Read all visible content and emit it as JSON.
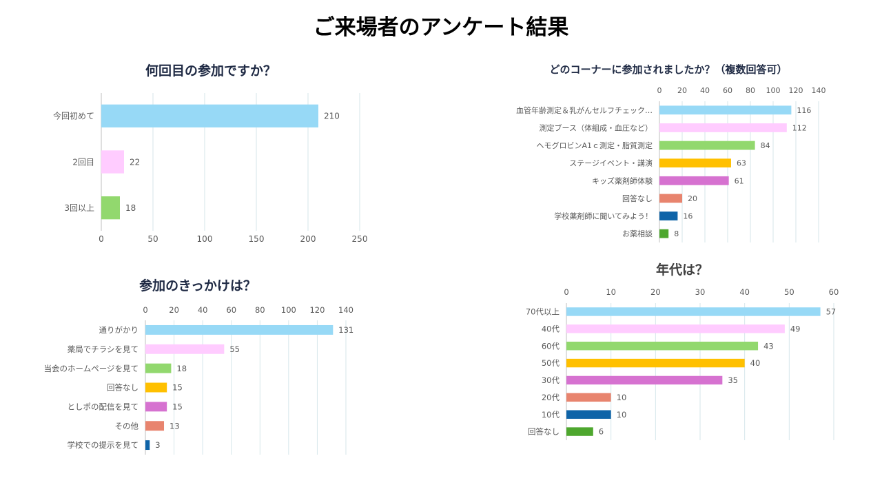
{
  "page": {
    "title": "ご来場者のアンケート結果"
  },
  "chart_data": [
    {
      "type": "bar",
      "orientation": "horizontal",
      "title": "何回目の参加ですか？",
      "categories": [
        "今回初めて",
        "2回目",
        "3回以上"
      ],
      "values": [
        210,
        22,
        18
      ],
      "colors": [
        "#97d9f6",
        "#ffccff",
        "#92d86e"
      ],
      "xlim": [
        0,
        250
      ],
      "xticks": [
        0,
        50,
        100,
        150,
        200,
        250
      ],
      "axis_position": "bottom",
      "grid": true
    },
    {
      "type": "bar",
      "orientation": "horizontal",
      "title": "どのコーナーに参加されましたか？（複数回答可）",
      "categories": [
        "血管年齢測定＆乳がんセルフチェック…",
        "測定ブース（体組成・血圧など）",
        "ヘモグロビンA1ｃ測定・脂質測定",
        "ステージイベント・講演",
        "キッズ薬剤師体験",
        "回答なし",
        "学校薬剤師に聞いてみよう！",
        "お薬相談"
      ],
      "values": [
        116,
        112,
        84,
        63,
        61,
        20,
        16,
        8
      ],
      "colors": [
        "#97d9f6",
        "#ffccff",
        "#92d86e",
        "#ffc000",
        "#d672d0",
        "#e8846e",
        "#0f64a8",
        "#4ea72e"
      ],
      "xlim": [
        0,
        140
      ],
      "xticks": [
        0,
        20,
        40,
        60,
        80,
        100,
        120,
        140
      ],
      "axis_position": "top",
      "grid": true
    },
    {
      "type": "bar",
      "orientation": "horizontal",
      "title": "参加のきっかけは？",
      "categories": [
        "通りがかり",
        "薬局でチラシを見て",
        "当会のホームページを見て",
        "回答なし",
        "としポの配信を見て",
        "その他",
        "学校での提示を見て"
      ],
      "values": [
        131,
        55,
        18,
        15,
        15,
        13,
        3
      ],
      "colors": [
        "#97d9f6",
        "#ffccff",
        "#92d86e",
        "#ffc000",
        "#d672d0",
        "#e8846e",
        "#0f64a8"
      ],
      "xlim": [
        0,
        140
      ],
      "xticks": [
        0,
        20,
        40,
        60,
        80,
        100,
        120,
        140
      ],
      "axis_position": "top",
      "grid": true
    },
    {
      "type": "bar",
      "orientation": "horizontal",
      "title": "年代は？",
      "categories": [
        "70代以上",
        "40代",
        "60代",
        "50代",
        "30代",
        "20代",
        "10代",
        "回答なし"
      ],
      "values": [
        57,
        49,
        43,
        40,
        35,
        10,
        10,
        6
      ],
      "colors": [
        "#97d9f6",
        "#ffccff",
        "#92d86e",
        "#ffc000",
        "#d672d0",
        "#e8846e",
        "#0f64a8",
        "#4ea72e"
      ],
      "xlim": [
        0,
        60
      ],
      "xticks": [
        0,
        10,
        20,
        30,
        40,
        50,
        60
      ],
      "axis_position": "top",
      "grid": true
    }
  ]
}
